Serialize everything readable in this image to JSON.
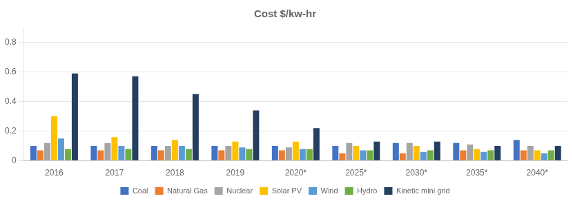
{
  "chart_data": {
    "type": "bar",
    "title": "Cost $/kw-hr",
    "categories": [
      "2016",
      "2017",
      "2018",
      "2019",
      "2020*",
      "2025*",
      "2030*",
      "2035*",
      "2040*"
    ],
    "series": [
      {
        "name": "Coal",
        "color": "#4472C4",
        "values": [
          0.1,
          0.1,
          0.1,
          0.1,
          0.1,
          0.1,
          0.12,
          0.12,
          0.14
        ]
      },
      {
        "name": "Natural Gas",
        "color": "#ED7D31",
        "values": [
          0.07,
          0.07,
          0.07,
          0.07,
          0.07,
          0.05,
          0.05,
          0.07,
          0.07
        ]
      },
      {
        "name": "Nuclear",
        "color": "#A5A5A5",
        "values": [
          0.12,
          0.12,
          0.1,
          0.1,
          0.09,
          0.12,
          0.12,
          0.11,
          0.1
        ]
      },
      {
        "name": "Solar PV",
        "color": "#FFC000",
        "values": [
          0.3,
          0.16,
          0.14,
          0.13,
          0.13,
          0.1,
          0.1,
          0.08,
          0.07
        ]
      },
      {
        "name": "Wind",
        "color": "#5B9BD5",
        "values": [
          0.15,
          0.1,
          0.1,
          0.09,
          0.08,
          0.07,
          0.06,
          0.06,
          0.05
        ]
      },
      {
        "name": "Hydro",
        "color": "#70AD47",
        "values": [
          0.08,
          0.08,
          0.08,
          0.08,
          0.08,
          0.07,
          0.07,
          0.07,
          0.07
        ]
      },
      {
        "name": "Kinetic mini grid",
        "color": "#243F60",
        "values": [
          0.59,
          0.57,
          0.45,
          0.34,
          0.22,
          0.13,
          0.13,
          0.1,
          0.1
        ]
      }
    ],
    "ylim": [
      0,
      0.9
    ],
    "yticks": [
      0,
      0.2,
      0.4,
      0.6,
      0.8
    ],
    "grid": true,
    "legend": "bottom"
  }
}
